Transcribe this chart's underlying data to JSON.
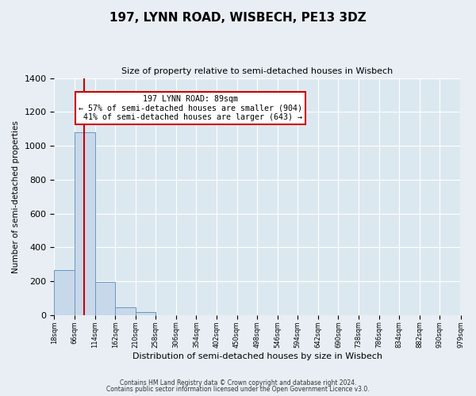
{
  "title": "197, LYNN ROAD, WISBECH, PE13 3DZ",
  "subtitle": "Size of property relative to semi-detached houses in Wisbech",
  "xlabel": "Distribution of semi-detached houses by size in Wisbech",
  "ylabel": "Number of semi-detached properties",
  "bin_edges": [
    18,
    66,
    114,
    162,
    210,
    258,
    306,
    354,
    402,
    450,
    498,
    546,
    594,
    642,
    690,
    738,
    786,
    834,
    882,
    930,
    979
  ],
  "bar_heights": [
    265,
    1080,
    195,
    48,
    18,
    0,
    0,
    0,
    0,
    0,
    0,
    0,
    0,
    0,
    0,
    0,
    0,
    0,
    0,
    0
  ],
  "bar_color": "#c8d8eb",
  "bar_edge_color": "#6699bb",
  "property_size": 89,
  "property_label": "197 LYNN ROAD: 89sqm",
  "pct_smaller": 57,
  "n_smaller": 904,
  "pct_larger": 41,
  "n_larger": 643,
  "vline_color": "#cc0000",
  "annotation_box_color": "#cc0000",
  "ylim": [
    0,
    1400
  ],
  "yticks": [
    0,
    200,
    400,
    600,
    800,
    1000,
    1200,
    1400
  ],
  "bg_color": "#e8eef4",
  "plot_bg_color": "#dce8f0",
  "footer1": "Contains HM Land Registry data © Crown copyright and database right 2024.",
  "footer2": "Contains public sector information licensed under the Open Government Licence v3.0."
}
